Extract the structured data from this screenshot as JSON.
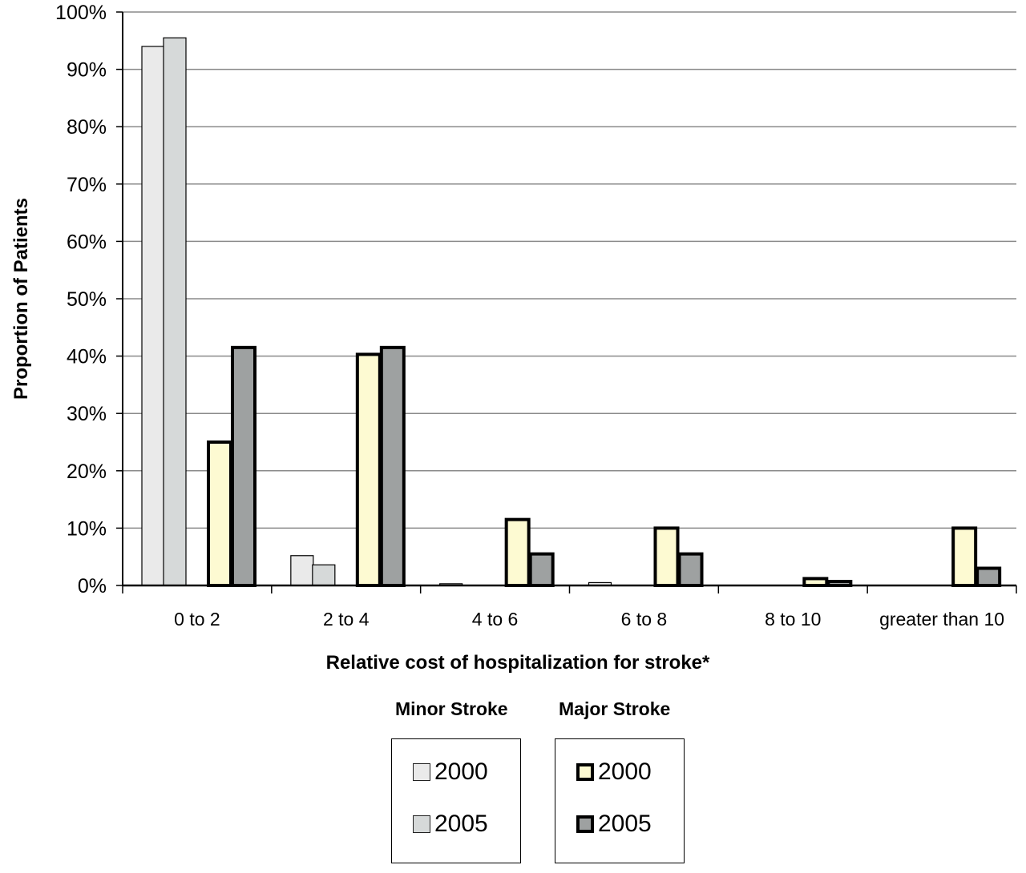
{
  "chart_data": {
    "type": "bar",
    "xlabel": "Relative cost of hospitalization for stroke*",
    "ylabel": "Proportion of Patients",
    "ylim": [
      0,
      100
    ],
    "y_ticks": [
      "0%",
      "10%",
      "20%",
      "30%",
      "40%",
      "50%",
      "60%",
      "70%",
      "80%",
      "90%",
      "100%"
    ],
    "grid": true,
    "categories": [
      "0 to 2",
      "2 to 4",
      "4 to 6",
      "6 to 8",
      "8 to 10",
      "greater than 10"
    ],
    "series": [
      {
        "group": "Minor Stroke",
        "name": "2000",
        "color": "#eaeaea",
        "border": "thin",
        "values": [
          94,
          5.2,
          0.3,
          0.5,
          0,
          0
        ]
      },
      {
        "group": "Minor Stroke",
        "name": "2005",
        "color": "#d6d9d9",
        "border": "thin",
        "values": [
          95.5,
          3.6,
          0,
          0,
          0,
          0
        ]
      },
      {
        "group": "Major Stroke",
        "name": "2000",
        "color": "#fdfad2",
        "border": "thick",
        "values": [
          25,
          40.3,
          11.5,
          10,
          1.2,
          10
        ]
      },
      {
        "group": "Major Stroke",
        "name": "2005",
        "color": "#9ea1a1",
        "border": "thick",
        "values": [
          41.5,
          41.5,
          5.5,
          5.5,
          0.7,
          3
        ]
      }
    ],
    "legend": {
      "groups": [
        {
          "title": "Minor Stroke",
          "entries": [
            "2000",
            "2005"
          ]
        },
        {
          "title": "Major Stroke",
          "entries": [
            "2000",
            "2005"
          ]
        }
      ],
      "placement": "bottom"
    }
  }
}
